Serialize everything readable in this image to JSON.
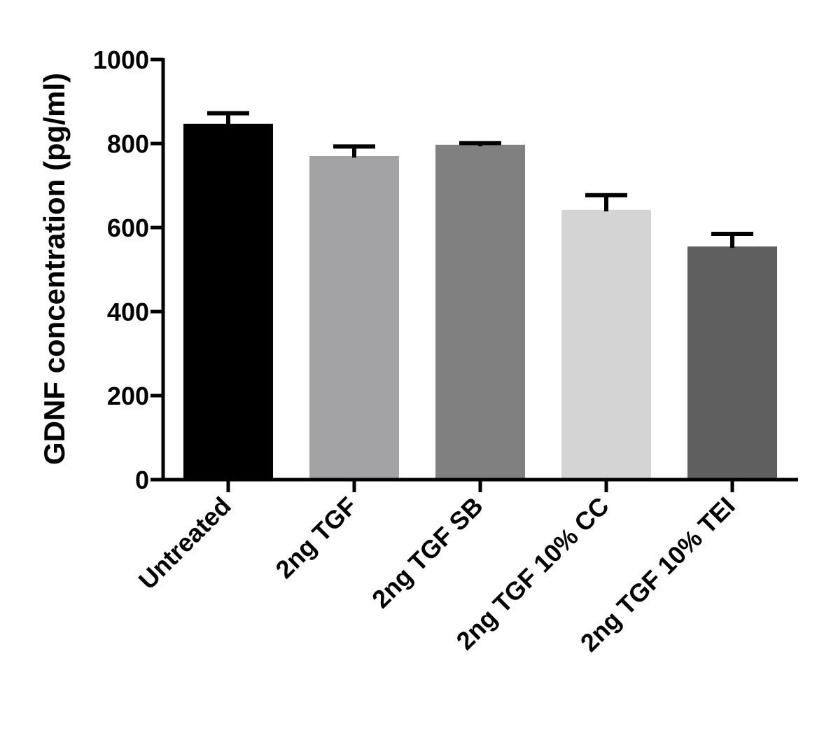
{
  "chart_data": {
    "type": "bar",
    "title": "",
    "xlabel": "",
    "ylabel": "GDNF concentration (pg/ml)",
    "ylim": [
      0,
      1000
    ],
    "yticks": [
      0,
      200,
      400,
      600,
      800,
      1000
    ],
    "ytick_labels": [
      "0",
      "200",
      "400",
      "600",
      "800",
      "1000"
    ],
    "categories": [
      "Untreated",
      "2ng TGF",
      "2ng TGF SB",
      "2ng TGF 10% CC",
      "2ng TGF 10% TEI"
    ],
    "values": [
      847,
      770,
      797,
      642,
      555
    ],
    "errors": [
      25,
      23,
      4,
      35,
      30
    ],
    "colors": [
      "#000000",
      "#a3a3a6",
      "#808080",
      "#d4d4d4",
      "#5f5f5f"
    ],
    "grid": false,
    "legend": "none"
  }
}
